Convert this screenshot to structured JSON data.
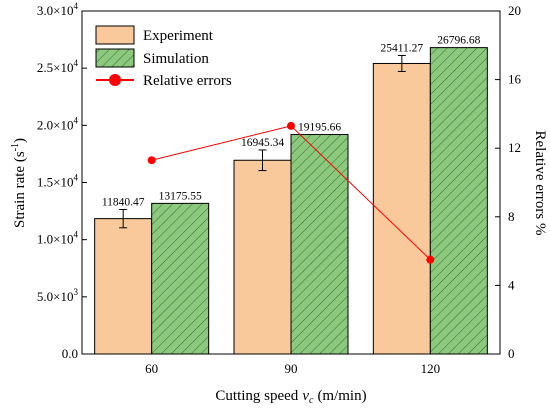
{
  "chart_data": {
    "type": "bar",
    "categories": [
      "60",
      "90",
      "120"
    ],
    "series": [
      {
        "name": "Experiment",
        "kind": "bar",
        "axis": "left",
        "values": [
          11840.47,
          16945.34,
          25411.27
        ],
        "labels": [
          "11840.47",
          "16945.34",
          "25411.27"
        ],
        "error": [
          800,
          900,
          700
        ],
        "color": "#f9c89b"
      },
      {
        "name": "Simulation",
        "kind": "bar",
        "axis": "left",
        "values": [
          13175.55,
          19195.66,
          26796.68
        ],
        "labels": [
          "13175.55",
          "19195.66",
          "26796.68"
        ],
        "color": "#8cc97e",
        "pattern": "diagonal-hatch"
      },
      {
        "name": "Relative errors",
        "kind": "line",
        "axis": "right",
        "values": [
          11.3,
          13.3,
          5.5
        ],
        "color": "#ff0000"
      }
    ],
    "xlabel": "Cutting speed",
    "xlabel_var": "v",
    "xlabel_sub": "c",
    "xlabel_unit": "(m/min)",
    "ylabel": "Strain rate (s",
    "ylabel_sup": "-1",
    "ylabel_close": ")",
    "y2label": "Relative errors %",
    "ylim": [
      0,
      30000
    ],
    "y2lim": [
      0,
      20
    ],
    "yticks": [
      {
        "value": 0,
        "mant": "0.0",
        "exp": ""
      },
      {
        "value": 5000,
        "mant": "5.0×10",
        "exp": "3"
      },
      {
        "value": 10000,
        "mant": "1.0×10",
        "exp": "4"
      },
      {
        "value": 15000,
        "mant": "1.5×10",
        "exp": "4"
      },
      {
        "value": 20000,
        "mant": "2.0×10",
        "exp": "4"
      },
      {
        "value": 25000,
        "mant": "2.5×10",
        "exp": "4"
      },
      {
        "value": 30000,
        "mant": "3.0×10",
        "exp": "4"
      }
    ],
    "y2ticks": [
      "0",
      "4",
      "8",
      "12",
      "16",
      "20"
    ],
    "legend_position": "top-left",
    "grid": false
  }
}
